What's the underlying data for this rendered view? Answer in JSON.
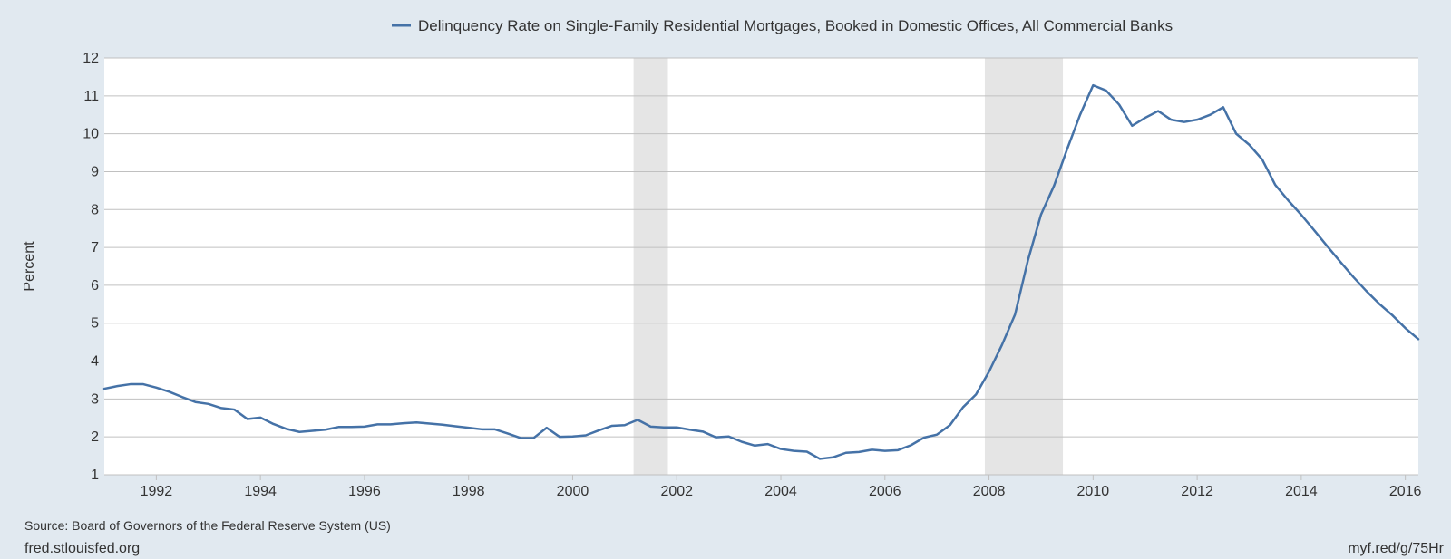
{
  "chart_data": {
    "type": "line",
    "title": "",
    "ylabel": "Percent",
    "xlabel": "",
    "ylim": [
      1,
      12
    ],
    "xlim": [
      1991.0,
      2016.25
    ],
    "y_ticks": [
      "1",
      "2",
      "3",
      "4",
      "5",
      "6",
      "7",
      "8",
      "9",
      "10",
      "11",
      "12"
    ],
    "x_ticks": [
      "1992",
      "1994",
      "1996",
      "1998",
      "2000",
      "2002",
      "2004",
      "2006",
      "2008",
      "2010",
      "2012",
      "2014",
      "2016"
    ],
    "grid": true,
    "legend": "top-center",
    "recessions": [
      {
        "start": 2001.17,
        "end": 2001.83
      },
      {
        "start": 2007.92,
        "end": 2009.42
      }
    ],
    "series": [
      {
        "name": "Delinquency Rate on Single-Family Residential Mortgages, Booked in Domestic Offices, All Commercial Banks",
        "color": "#4572a7",
        "x": [
          1991.0,
          1991.25,
          1991.5,
          1991.75,
          1992.0,
          1992.25,
          1992.5,
          1992.75,
          1993.0,
          1993.25,
          1993.5,
          1993.75,
          1994.0,
          1994.25,
          1994.5,
          1994.75,
          1995.0,
          1995.25,
          1995.5,
          1995.75,
          1996.0,
          1996.25,
          1996.5,
          1996.75,
          1997.0,
          1997.25,
          1997.5,
          1997.75,
          1998.0,
          1998.25,
          1998.5,
          1998.75,
          1999.0,
          1999.25,
          1999.5,
          1999.75,
          2000.0,
          2000.25,
          2000.5,
          2000.75,
          2001.0,
          2001.25,
          2001.5,
          2001.75,
          2002.0,
          2002.25,
          2002.5,
          2002.75,
          2003.0,
          2003.25,
          2003.5,
          2003.75,
          2004.0,
          2004.25,
          2004.5,
          2004.75,
          2005.0,
          2005.25,
          2005.5,
          2005.75,
          2006.0,
          2006.25,
          2006.5,
          2006.75,
          2007.0,
          2007.25,
          2007.5,
          2007.75,
          2008.0,
          2008.25,
          2008.5,
          2008.75,
          2009.0,
          2009.25,
          2009.5,
          2009.75,
          2010.0,
          2010.25,
          2010.5,
          2010.75,
          2011.0,
          2011.25,
          2011.5,
          2011.75,
          2012.0,
          2012.25,
          2012.5,
          2012.75,
          2013.0,
          2013.25,
          2013.5,
          2013.75,
          2014.0,
          2014.25,
          2014.5,
          2014.75,
          2015.0,
          2015.25,
          2015.5,
          2015.75,
          2016.0,
          2016.25
        ],
        "values": [
          3.27,
          3.34,
          3.39,
          3.39,
          3.3,
          3.19,
          3.05,
          2.92,
          2.87,
          2.76,
          2.72,
          2.47,
          2.51,
          2.34,
          2.21,
          2.13,
          2.16,
          2.19,
          2.26,
          2.26,
          2.27,
          2.33,
          2.33,
          2.36,
          2.38,
          2.35,
          2.32,
          2.28,
          2.24,
          2.2,
          2.2,
          2.09,
          1.97,
          1.97,
          2.24,
          2.0,
          2.01,
          2.04,
          2.17,
          2.29,
          2.31,
          2.45,
          2.27,
          2.25,
          2.25,
          2.19,
          2.14,
          1.99,
          2.01,
          1.87,
          1.77,
          1.81,
          1.68,
          1.63,
          1.61,
          1.42,
          1.46,
          1.58,
          1.6,
          1.66,
          1.63,
          1.65,
          1.78,
          1.98,
          2.06,
          2.31,
          2.78,
          3.12,
          3.72,
          4.43,
          5.23,
          6.67,
          7.87,
          8.63,
          9.59,
          10.5,
          11.28,
          11.14,
          10.77,
          10.21,
          10.42,
          10.6,
          10.37,
          10.31,
          10.37,
          10.5,
          10.7,
          10.0,
          9.71,
          9.32,
          8.65,
          8.24,
          7.86,
          7.45,
          7.03,
          6.62,
          6.22,
          5.85,
          5.51,
          5.21,
          4.87,
          4.58
        ]
      }
    ]
  },
  "footer": {
    "source": "Source: Board of Governors of the Federal Reserve System (US)",
    "site": "fred.stlouisfed.org",
    "short_link": "myf.red/g/75Hr"
  }
}
